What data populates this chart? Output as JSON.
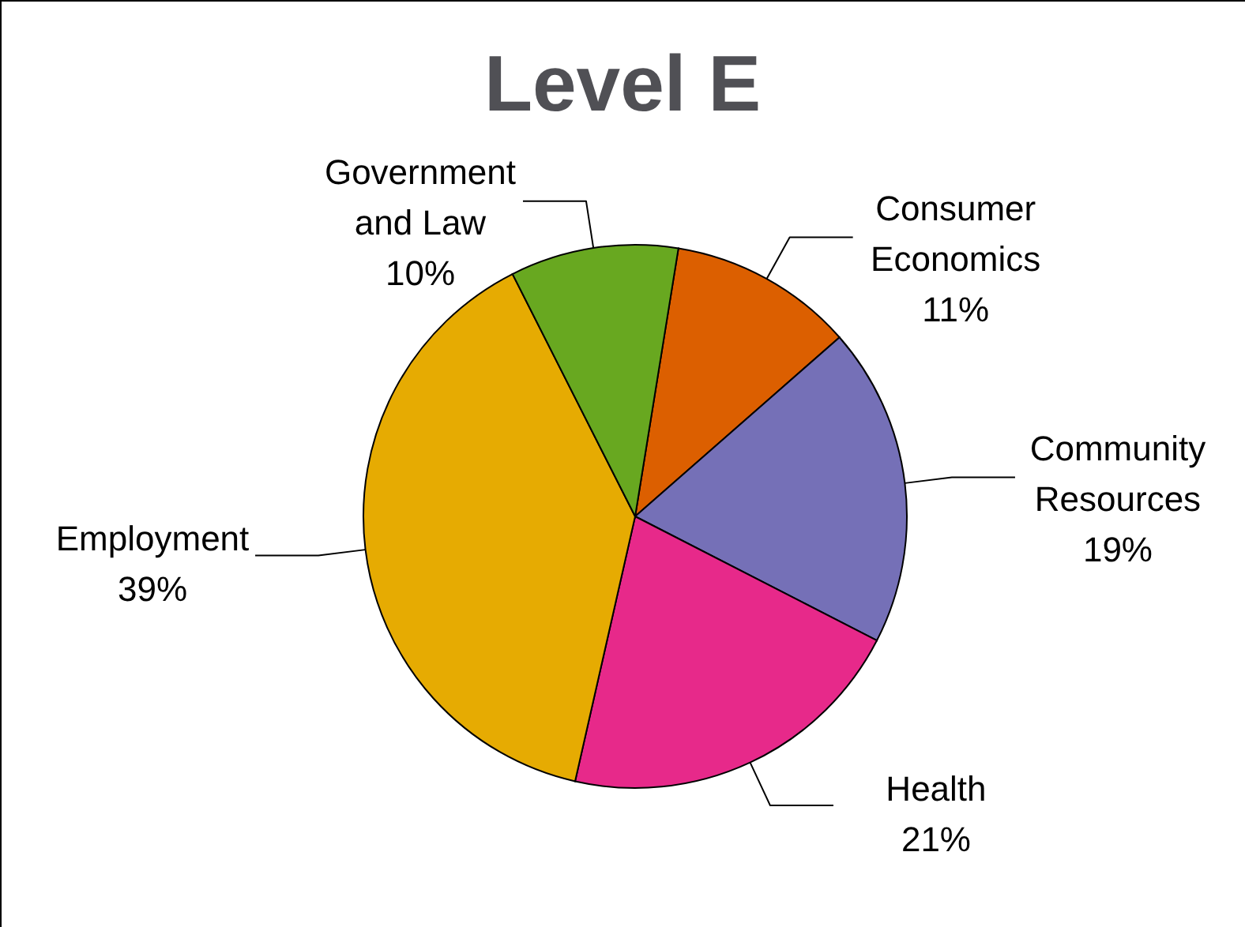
{
  "chart_data": {
    "type": "pie",
    "title": "Level E",
    "categories": [
      "Consumer Economics",
      "Community Resources",
      "Health",
      "Employment",
      "Government and Law"
    ],
    "values": [
      11,
      19,
      21,
      39,
      10
    ],
    "colors": [
      "#dc5f00",
      "#7570b7",
      "#e7298a",
      "#e6ab02",
      "#68a820"
    ],
    "value_labels": [
      "11%",
      "19%",
      "21%",
      "39%",
      "10%"
    ]
  }
}
